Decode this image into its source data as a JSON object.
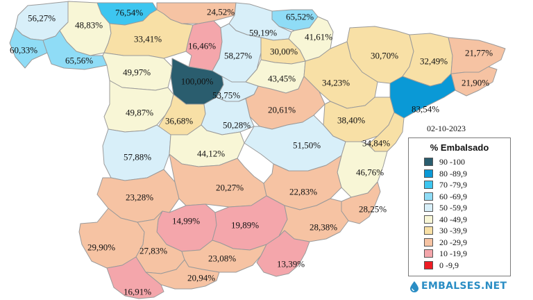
{
  "date": "02-10-2023",
  "legend": {
    "title": "% Embalsado",
    "items": [
      {
        "label": "90 -100",
        "color": "#2a5d6e"
      },
      {
        "label": "80 -89,9",
        "color": "#0a99d6"
      },
      {
        "label": "70 -79,9",
        "color": "#3dc6f0"
      },
      {
        "label": "60 -69,9",
        "color": "#8fdcf6"
      },
      {
        "label": "50 -59,9",
        "color": "#d8eff9"
      },
      {
        "label": "40 -49,9",
        "color": "#f8f6d6"
      },
      {
        "label": "30 -39,9",
        "color": "#f8e0a6"
      },
      {
        "label": "20 -29,9",
        "color": "#f6c3a3"
      },
      {
        "label": "10 -19,9",
        "color": "#f4a6ab"
      },
      {
        "label": "0 -9,9",
        "color": "#ee1c24"
      }
    ]
  },
  "regions": [
    {
      "id": "galicia-north",
      "value": "56,27%",
      "color": "#d8eff9"
    },
    {
      "id": "cantabria-west",
      "value": "76,54%",
      "color": "#3dc6f0"
    },
    {
      "id": "cantabria-east",
      "value": "24,52%",
      "color": "#f6c3a3"
    },
    {
      "id": "pais-vasco",
      "value": "65,52%",
      "color": "#8fdcf6"
    },
    {
      "id": "mino-sil",
      "value": "48,83%",
      "color": "#f8f6d6"
    },
    {
      "id": "galicia-west",
      "value": "60,33%",
      "color": "#8fdcf6"
    },
    {
      "id": "galicia-south",
      "value": "65,56%",
      "color": "#8fdcf6"
    },
    {
      "id": "duero-north",
      "value": "33,41%",
      "color": "#f8e0a6"
    },
    {
      "id": "pisuerga",
      "value": "16,46%",
      "color": "#f4a6ab"
    },
    {
      "id": "ebro-upper",
      "value": "59,19%",
      "color": "#d8eff9"
    },
    {
      "id": "navarra",
      "value": "41,61%",
      "color": "#f8f6d6"
    },
    {
      "id": "burgos",
      "value": "58,27%",
      "color": "#d8eff9"
    },
    {
      "id": "rioja",
      "value": "30,00%",
      "color": "#f8e0a6"
    },
    {
      "id": "huesca",
      "value": "30,70%",
      "color": "#f8e0a6"
    },
    {
      "id": "lleida",
      "value": "32,49%",
      "color": "#f8e0a6"
    },
    {
      "id": "girona",
      "value": "21,77%",
      "color": "#f6c3a3"
    },
    {
      "id": "zamora",
      "value": "49,97%",
      "color": "#f8f6d6"
    },
    {
      "id": "valladolid",
      "value": "100,00%",
      "color": "#2a5d6e"
    },
    {
      "id": "soria",
      "value": "43,45%",
      "color": "#f8f6d6"
    },
    {
      "id": "zaragoza",
      "value": "34,23%",
      "color": "#f8e0a6"
    },
    {
      "id": "barcelona",
      "value": "21,90%",
      "color": "#f6c3a3"
    },
    {
      "id": "segovia",
      "value": "53,75%",
      "color": "#d8eff9"
    },
    {
      "id": "tarragona",
      "value": "83,54%",
      "color": "#0a99d6"
    },
    {
      "id": "salamanca",
      "value": "49,87%",
      "color": "#f8f6d6"
    },
    {
      "id": "guadalajara",
      "value": "20,61%",
      "color": "#f6c3a3"
    },
    {
      "id": "avila",
      "value": "36,68%",
      "color": "#f8e0a6"
    },
    {
      "id": "madrid",
      "value": "50,28%",
      "color": "#d8eff9"
    },
    {
      "id": "teruel",
      "value": "38,40%",
      "color": "#f8e0a6"
    },
    {
      "id": "castellon",
      "value": "34,84%",
      "color": "#f8e0a6"
    },
    {
      "id": "caceres",
      "value": "57,88%",
      "color": "#d8eff9"
    },
    {
      "id": "toledo",
      "value": "44,12%",
      "color": "#f8f6d6"
    },
    {
      "id": "cuenca",
      "value": "51,50%",
      "color": "#d8eff9"
    },
    {
      "id": "valencia",
      "value": "46,76%",
      "color": "#f8f6d6"
    },
    {
      "id": "badajoz",
      "value": "23,28%",
      "color": "#f6c3a3"
    },
    {
      "id": "ciudad-real",
      "value": "20,27%",
      "color": "#f6c3a3"
    },
    {
      "id": "albacete",
      "value": "22,83%",
      "color": "#f6c3a3"
    },
    {
      "id": "alicante",
      "value": "28,25%",
      "color": "#f6c3a3"
    },
    {
      "id": "cordoba",
      "value": "14,99%",
      "color": "#f4a6ab"
    },
    {
      "id": "jaen",
      "value": "19,89%",
      "color": "#f4a6ab"
    },
    {
      "id": "murcia",
      "value": "28,38%",
      "color": "#f6c3a3"
    },
    {
      "id": "huelva",
      "value": "29,90%",
      "color": "#f6c3a3"
    },
    {
      "id": "sevilla",
      "value": "27,83%",
      "color": "#f6c3a3"
    },
    {
      "id": "granada",
      "value": "23,08%",
      "color": "#f6c3a3"
    },
    {
      "id": "almeria",
      "value": "13,39%",
      "color": "#f4a6ab"
    },
    {
      "id": "malaga",
      "value": "20,94%",
      "color": "#f6c3a3"
    },
    {
      "id": "cadiz",
      "value": "16,91%",
      "color": "#f4a6ab"
    }
  ],
  "brand": {
    "name": "EMBALSES.NET",
    "icon": "water-drop-icon",
    "color": "#2a8dc4"
  }
}
